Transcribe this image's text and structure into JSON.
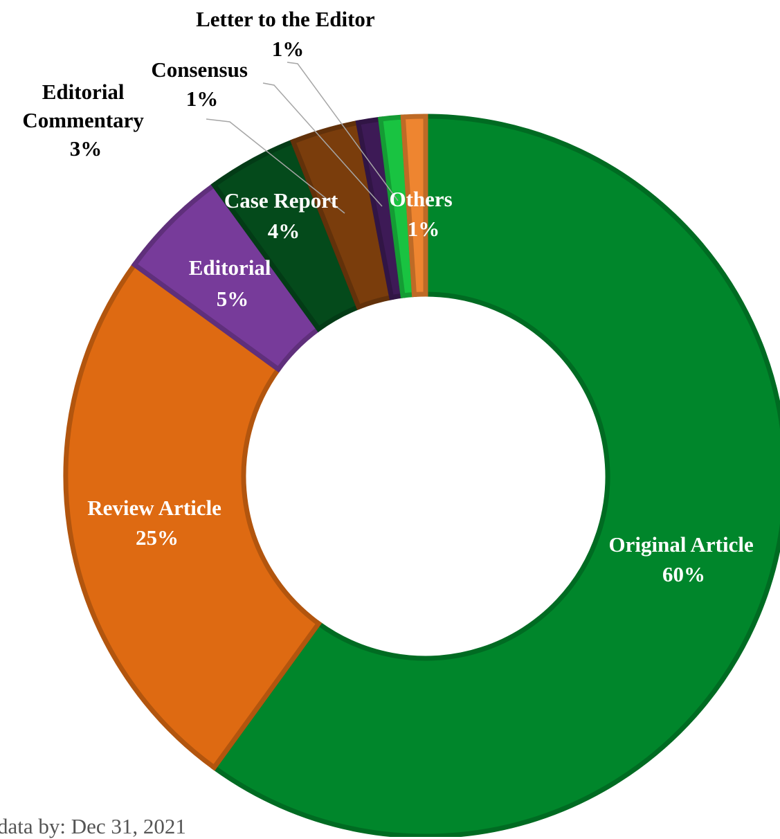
{
  "chart_data": {
    "type": "pie",
    "style": "donut",
    "series": [
      {
        "name": "Original Article",
        "value": 60,
        "color": "#00862b",
        "label_color": "#ffffff"
      },
      {
        "name": "Review Article",
        "value": 25,
        "color": "#de6a12",
        "label_color": "#ffffff"
      },
      {
        "name": "Editorial",
        "value": 5,
        "color": "#773b9a",
        "label_color": "#ffffff"
      },
      {
        "name": "Case Report",
        "value": 4,
        "color": "#044a1b",
        "label_color": "#ffffff"
      },
      {
        "name": "Editorial Commentary",
        "value": 3,
        "color": "#7a3d0c",
        "label_color": "#000000"
      },
      {
        "name": "Consensus",
        "value": 1,
        "color": "#3d1a56",
        "label_color": "#000000"
      },
      {
        "name": "Letter to the Editor",
        "value": 1,
        "color": "#19c341",
        "label_color": "#000000"
      },
      {
        "name": "Others",
        "value": 1,
        "color": "#ee8530",
        "label_color": "#ffffff"
      }
    ],
    "data_labels": {
      "original_article": {
        "name": "Original Article",
        "pct": "60%"
      },
      "review_article": {
        "name": "Review Article",
        "pct": "25%"
      },
      "editorial": {
        "name": "Editorial",
        "pct": "5%"
      },
      "case_report": {
        "name": "Case Report",
        "pct": "4%"
      },
      "editorial_commentary": {
        "line1": "Editorial",
        "line2": "Commentary",
        "pct": "3%"
      },
      "consensus": {
        "name": "Consensus",
        "pct": "1%"
      },
      "letter_to_the_editor": {
        "name": "Letter to the Editor",
        "pct": "1%"
      },
      "others": {
        "name": "Others",
        "pct": "1%"
      }
    },
    "footnote": "data by: Dec 31, 2021"
  }
}
